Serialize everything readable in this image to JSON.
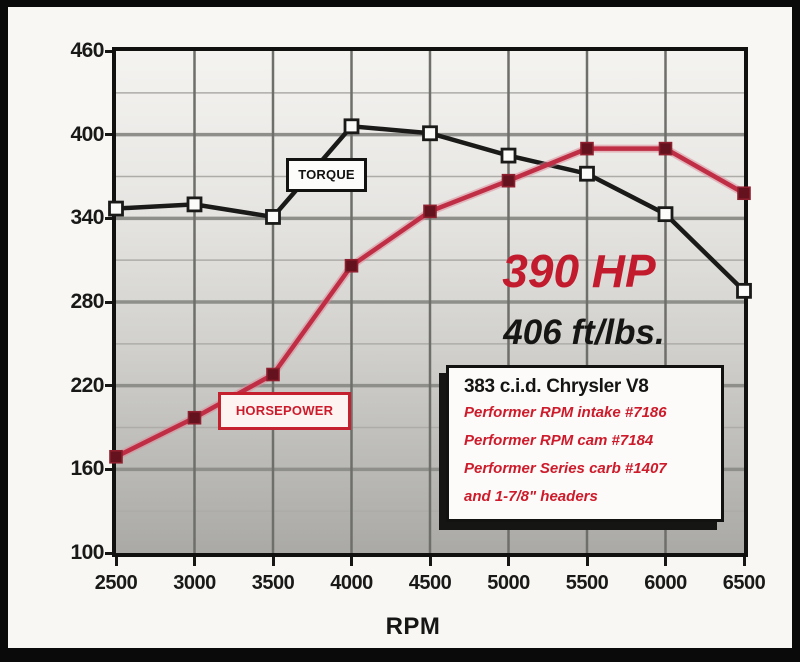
{
  "page": {
    "frame_color": "#0a0a0a",
    "paper_color": "#f8f7f4"
  },
  "chart_data": {
    "type": "line",
    "title": "",
    "xlabel": "RPM",
    "ylabel": "",
    "xlim": [
      2500,
      6500
    ],
    "ylim": [
      100,
      460
    ],
    "xticks": [
      2500,
      3000,
      3500,
      4000,
      4500,
      5000,
      5500,
      6000,
      6500
    ],
    "yticks": [
      100,
      160,
      220,
      280,
      340,
      400,
      460
    ],
    "yticks_minor": [
      130,
      190,
      250,
      310,
      370,
      430
    ],
    "grid": true,
    "legend_position": "on-curve-labels",
    "x": [
      2500,
      3000,
      3500,
      4000,
      4500,
      5000,
      5500,
      6000,
      6500
    ],
    "series": [
      {
        "name": "TORQUE",
        "values": [
          347,
          350,
          341,
          406,
          401,
          385,
          372,
          343,
          288
        ],
        "line_color": "#1a1a19",
        "marker": "square",
        "marker_fill": "#fbfbfa",
        "marker_stroke": "#1a1a19"
      },
      {
        "name": "HORSEPOWER",
        "values": [
          169,
          197,
          228,
          306,
          345,
          367,
          390,
          390,
          358
        ],
        "line_color": "#bf2e44",
        "glow_color": "#dd8b99",
        "marker": "square",
        "marker_fill": "#64121d",
        "marker_stroke": "#8e1f2e"
      }
    ],
    "annotations": {
      "torque_curve_label": "TORQUE",
      "hp_curve_label": "HORSEPOWER",
      "hp_peak_headline": "390 HP",
      "torque_peak_headline": "406 ft/lbs."
    }
  },
  "spec_box": {
    "title": "383 c.i.d. Chrysler V8",
    "lines": [
      "Performer RPM intake #7186",
      "Performer RPM cam #7184",
      "Performer Series carb #1407",
      "and 1-7/8\" headers"
    ]
  },
  "colors": {
    "accent_red": "#c31b2e",
    "torque_black": "#1a1a19",
    "hp_marker_maroon": "#64121d",
    "grid_major": "#8e8e8b",
    "grid_minor": "#adaca9",
    "grid_vertical": "#6e6e6b"
  }
}
